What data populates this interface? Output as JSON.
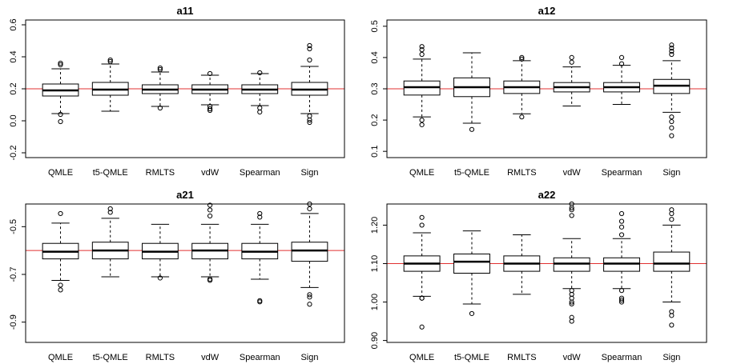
{
  "chart_data": [
    {
      "type": "boxplot",
      "title": "a11",
      "categories": [
        "QMLE",
        "t5-QMLE",
        "RMLTS",
        "vdW",
        "Spearman",
        "Sign"
      ],
      "ylim": [
        -0.23,
        0.63
      ],
      "yticks": [
        -0.2,
        0.0,
        0.2,
        0.4,
        0.6
      ],
      "ytick_labels": [
        "-0.2",
        "0.0",
        "0.2",
        "0.4",
        "0.6"
      ],
      "reference_line": 0.2,
      "reference_color": "#e03030",
      "boxes": [
        {
          "whisker_low": 0.045,
          "q1": 0.155,
          "median": 0.19,
          "q3": 0.23,
          "whisker_high": 0.325,
          "outliers": [
            0.36,
            0.35,
            0.04,
            -0.005
          ]
        },
        {
          "whisker_low": 0.06,
          "q1": 0.16,
          "median": 0.195,
          "q3": 0.24,
          "whisker_high": 0.355,
          "outliers": [
            0.38,
            0.37
          ]
        },
        {
          "whisker_low": 0.09,
          "q1": 0.17,
          "median": 0.195,
          "q3": 0.225,
          "whisker_high": 0.305,
          "outliers": [
            0.33,
            0.32,
            0.08
          ]
        },
        {
          "whisker_low": 0.1,
          "q1": 0.17,
          "median": 0.195,
          "q3": 0.225,
          "whisker_high": 0.285,
          "outliers": [
            0.295,
            0.09,
            0.075,
            0.065
          ]
        },
        {
          "whisker_low": 0.095,
          "q1": 0.17,
          "median": 0.195,
          "q3": 0.225,
          "whisker_high": 0.295,
          "outliers": [
            0.3,
            0.08,
            0.055
          ]
        },
        {
          "whisker_low": 0.045,
          "q1": 0.16,
          "median": 0.195,
          "q3": 0.24,
          "whisker_high": 0.34,
          "outliers": [
            0.47,
            0.45,
            0.38,
            0.03,
            0.005,
            -0.01
          ]
        }
      ]
    },
    {
      "type": "boxplot",
      "title": "a12",
      "categories": [
        "QMLE",
        "t5-QMLE",
        "RMLTS",
        "vdW",
        "Spearman",
        "Sign"
      ],
      "ylim": [
        0.08,
        0.52
      ],
      "yticks": [
        0.1,
        0.2,
        0.3,
        0.4,
        0.5
      ],
      "ytick_labels": [
        "0.1",
        "0.2",
        "0.3",
        "0.4",
        "0.5"
      ],
      "reference_line": 0.3,
      "reference_color": "#e03030",
      "boxes": [
        {
          "whisker_low": 0.21,
          "q1": 0.28,
          "median": 0.305,
          "q3": 0.325,
          "whisker_high": 0.395,
          "outliers": [
            0.435,
            0.425,
            0.41,
            0.2,
            0.185
          ]
        },
        {
          "whisker_low": 0.19,
          "q1": 0.275,
          "median": 0.305,
          "q3": 0.335,
          "whisker_high": 0.415,
          "outliers": [
            0.17
          ]
        },
        {
          "whisker_low": 0.22,
          "q1": 0.285,
          "median": 0.305,
          "q3": 0.325,
          "whisker_high": 0.39,
          "outliers": [
            0.4,
            0.395,
            0.21
          ]
        },
        {
          "whisker_low": 0.245,
          "q1": 0.29,
          "median": 0.305,
          "q3": 0.32,
          "whisker_high": 0.37,
          "outliers": [
            0.4,
            0.385
          ]
        },
        {
          "whisker_low": 0.25,
          "q1": 0.29,
          "median": 0.305,
          "q3": 0.32,
          "whisker_high": 0.375,
          "outliers": [
            0.4,
            0.38
          ]
        },
        {
          "whisker_low": 0.225,
          "q1": 0.285,
          "median": 0.31,
          "q3": 0.33,
          "whisker_high": 0.39,
          "outliers": [
            0.44,
            0.43,
            0.42,
            0.41,
            0.21,
            0.195,
            0.175,
            0.15
          ]
        }
      ]
    },
    {
      "type": "boxplot",
      "title": "a21",
      "categories": [
        "QMLE",
        "t5-QMLE",
        "RMLTS",
        "vdW",
        "Spearman",
        "Sign"
      ],
      "ylim": [
        -0.985,
        -0.405
      ],
      "yticks": [
        -0.9,
        -0.7,
        -0.5
      ],
      "ytick_labels": [
        "-0.9",
        "-0.7",
        "-0.5"
      ],
      "reference_line": -0.6,
      "reference_color": "#e03030",
      "boxes": [
        {
          "whisker_low": -0.725,
          "q1": -0.635,
          "median": -0.605,
          "q3": -0.57,
          "whisker_high": -0.485,
          "outliers": [
            -0.445,
            -0.745,
            -0.765
          ]
        },
        {
          "whisker_low": -0.71,
          "q1": -0.635,
          "median": -0.6,
          "q3": -0.565,
          "whisker_high": -0.465,
          "outliers": [
            -0.425,
            -0.44
          ]
        },
        {
          "whisker_low": -0.71,
          "q1": -0.635,
          "median": -0.605,
          "q3": -0.57,
          "whisker_high": -0.49,
          "outliers": [
            -0.715
          ]
        },
        {
          "whisker_low": -0.71,
          "q1": -0.635,
          "median": -0.6,
          "q3": -0.57,
          "whisker_high": -0.49,
          "outliers": [
            -0.41,
            -0.43,
            -0.455,
            -0.72,
            -0.725
          ]
        },
        {
          "whisker_low": -0.72,
          "q1": -0.635,
          "median": -0.605,
          "q3": -0.57,
          "whisker_high": -0.49,
          "outliers": [
            -0.445,
            -0.46,
            -0.81,
            -0.815
          ]
        },
        {
          "whisker_low": -0.755,
          "q1": -0.645,
          "median": -0.6,
          "q3": -0.565,
          "whisker_high": -0.445,
          "outliers": [
            -0.405,
            -0.425,
            -0.785,
            -0.795,
            -0.825
          ]
        }
      ]
    },
    {
      "type": "boxplot",
      "title": "a22",
      "categories": [
        "QMLE",
        "t5-QMLE",
        "RMLTS",
        "vdW",
        "Spearman",
        "Sign"
      ],
      "ylim": [
        0.895,
        1.255
      ],
      "yticks": [
        0.9,
        1.0,
        1.1,
        1.2
      ],
      "ytick_labels": [
        "0.90",
        "1.00",
        "1.10",
        "1.20"
      ],
      "reference_line": 1.1,
      "reference_color": "#e03030",
      "boxes": [
        {
          "whisker_low": 1.015,
          "q1": 1.08,
          "median": 1.1,
          "q3": 1.12,
          "whisker_high": 1.18,
          "outliers": [
            1.22,
            1.2,
            1.01,
            1.01,
            0.935
          ]
        },
        {
          "whisker_low": 0.995,
          "q1": 1.075,
          "median": 1.105,
          "q3": 1.125,
          "whisker_high": 1.185,
          "outliers": [
            0.97
          ]
        },
        {
          "whisker_low": 1.02,
          "q1": 1.08,
          "median": 1.1,
          "q3": 1.12,
          "whisker_high": 1.175,
          "outliers": []
        },
        {
          "whisker_low": 1.035,
          "q1": 1.08,
          "median": 1.1,
          "q3": 1.115,
          "whisker_high": 1.165,
          "outliers": [
            1.255,
            1.245,
            1.24,
            1.225,
            1.03,
            1.02,
            1.01,
            1.0,
            0.995,
            0.96,
            0.95
          ]
        },
        {
          "whisker_low": 1.035,
          "q1": 1.08,
          "median": 1.1,
          "q3": 1.115,
          "whisker_high": 1.165,
          "outliers": [
            1.23,
            1.21,
            1.195,
            1.175,
            1.03,
            1.01,
            1.005,
            1.0
          ]
        },
        {
          "whisker_low": 1.0,
          "q1": 1.08,
          "median": 1.1,
          "q3": 1.13,
          "whisker_high": 1.2,
          "outliers": [
            1.24,
            1.23,
            1.215,
            0.975,
            0.965,
            0.94
          ]
        }
      ]
    }
  ]
}
